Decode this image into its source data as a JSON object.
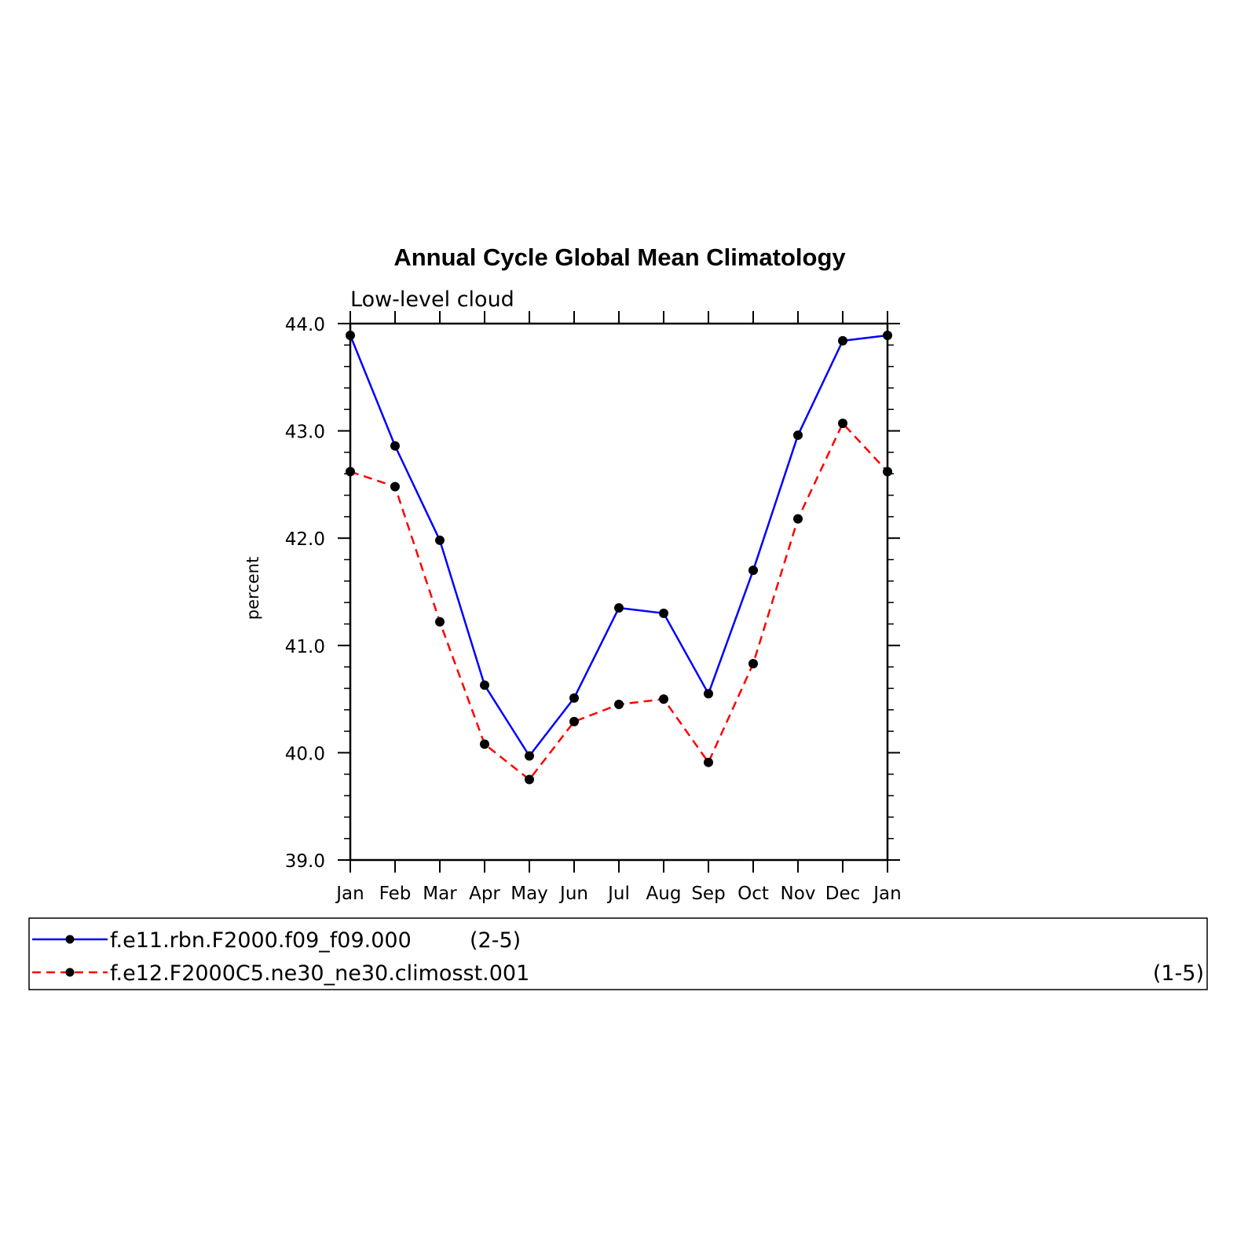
{
  "chart_data": {
    "type": "line",
    "title": "Annual Cycle Global Mean Climatology",
    "subtitle": "Low-level cloud",
    "ylabel": "percent",
    "xlabel": "",
    "categories": [
      "Jan",
      "Feb",
      "Mar",
      "Apr",
      "May",
      "Jun",
      "Jul",
      "Aug",
      "Sep",
      "Oct",
      "Nov",
      "Dec",
      "Jan"
    ],
    "ylim": [
      39.0,
      44.0
    ],
    "yticks": [
      "39.0",
      "40.0",
      "41.0",
      "42.0",
      "43.0",
      "44.0"
    ],
    "grid": false,
    "legend_position": "bottom",
    "series": [
      {
        "name": "f.e11.rbn.F2000.f09_f09.000",
        "legend_suffix": "(2-5)",
        "color": "#0000ff",
        "line_style": "solid",
        "marker": "dot",
        "values": [
          43.89,
          42.86,
          41.98,
          40.63,
          39.97,
          40.51,
          41.35,
          41.3,
          40.55,
          41.7,
          42.96,
          43.84,
          43.89
        ]
      },
      {
        "name": "f.e12.F2000C5.ne30_ne30.climosst.001",
        "legend_suffix": "(1-5)",
        "color": "#ff0000",
        "line_style": "dashed",
        "marker": "dot",
        "values": [
          42.62,
          42.48,
          41.22,
          40.08,
          39.75,
          40.29,
          40.45,
          40.5,
          39.91,
          40.83,
          42.18,
          43.07,
          42.62
        ]
      }
    ]
  }
}
